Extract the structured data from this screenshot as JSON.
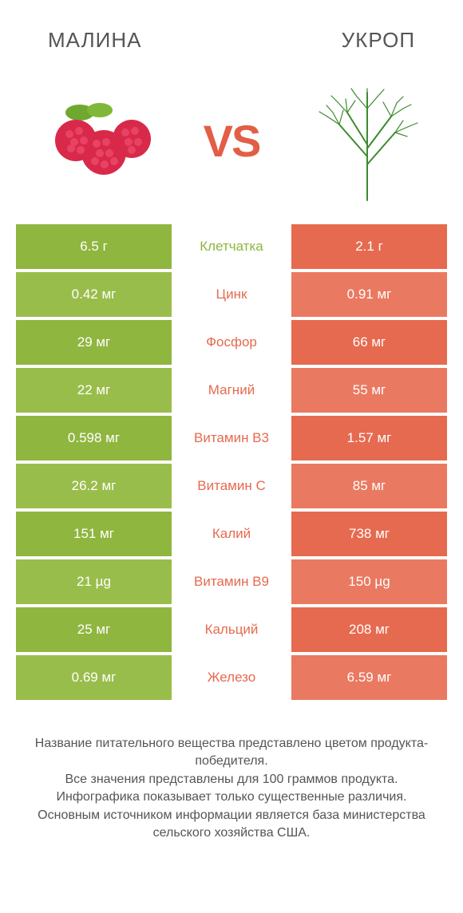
{
  "header": {
    "left_title": "МАЛИНА",
    "right_title": "УКРОП",
    "title_color": "#555555",
    "title_fontsize": 26
  },
  "vs": {
    "label": "VS",
    "color": "#e25f45",
    "fontsize": 56
  },
  "colors": {
    "left": "#8fb63f",
    "right": "#e66a4f",
    "row_alt_left": "#99bd4b",
    "row_alt_right": "#ea7961",
    "background": "#ffffff",
    "text_white": "#ffffff"
  },
  "images": {
    "left_name": "raspberry",
    "right_name": "dill"
  },
  "rows": [
    {
      "label": "Клетчатка",
      "left": "6.5 г",
      "right": "2.1 г",
      "winner": "left"
    },
    {
      "label": "Цинк",
      "left": "0.42 мг",
      "right": "0.91 мг",
      "winner": "right"
    },
    {
      "label": "Фосфор",
      "left": "29 мг",
      "right": "66 мг",
      "winner": "right"
    },
    {
      "label": "Магний",
      "left": "22 мг",
      "right": "55 мг",
      "winner": "right"
    },
    {
      "label": "Витамин B3",
      "left": "0.598 мг",
      "right": "1.57 мг",
      "winner": "right"
    },
    {
      "label": "Витамин C",
      "left": "26.2 мг",
      "right": "85 мг",
      "winner": "right"
    },
    {
      "label": "Калий",
      "left": "151 мг",
      "right": "738 мг",
      "winner": "right"
    },
    {
      "label": "Витамин B9",
      "left": "21 µg",
      "right": "150 µg",
      "winner": "right"
    },
    {
      "label": "Кальций",
      "left": "25 мг",
      "right": "208 мг",
      "winner": "right"
    },
    {
      "label": "Железо",
      "left": "0.69 мг",
      "right": "6.59 мг",
      "winner": "right"
    }
  ],
  "footer": {
    "line1": "Название питательного вещества представлено цветом продукта-победителя.",
    "line2": "Все значения представлены для 100 граммов продукта.",
    "line3": "Инфографика показывает только существенные различия.",
    "line4": "Основным источником информации является база министерства сельского хозяйства США.",
    "color": "#555555",
    "fontsize": 16
  }
}
